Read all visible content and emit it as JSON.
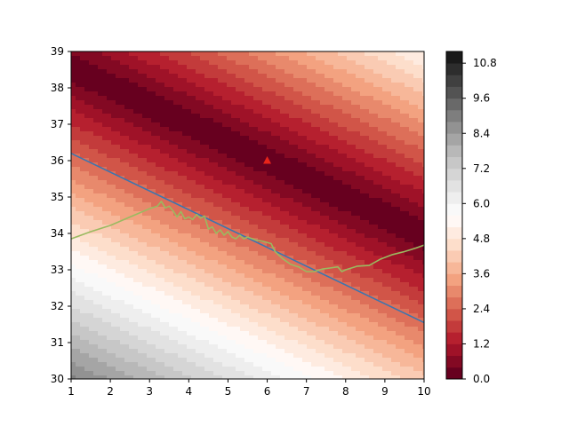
{
  "chart_data": {
    "type": "contour",
    "xlim": [
      1,
      10
    ],
    "ylim": [
      30,
      39
    ],
    "x_ticks": [
      "1",
      "2",
      "3",
      "4",
      "5",
      "6",
      "7",
      "8",
      "9",
      "10"
    ],
    "y_ticks": [
      "30",
      "31",
      "32",
      "33",
      "34",
      "35",
      "36",
      "37",
      "38",
      "39"
    ],
    "contour_levels": [
      0.0,
      0.4,
      0.8,
      1.2,
      1.6,
      2.0,
      2.4,
      2.8,
      3.2,
      3.6,
      4.0,
      4.4,
      4.8,
      5.2,
      5.6,
      6.0,
      6.4,
      6.8,
      7.2,
      7.6,
      8.0,
      8.4,
      8.8,
      9.2,
      9.6,
      10.0,
      10.4,
      10.8,
      11.2
    ],
    "colorbar_ticks": [
      "0.0",
      "1.2",
      "2.4",
      "3.6",
      "4.8",
      "6.0",
      "7.2",
      "8.4",
      "9.6",
      "10.8"
    ],
    "colormap": "RdGy",
    "field": {
      "min_point": [
        6,
        36
      ],
      "gradient_per_x": 0.53,
      "gradient_per_y": 1.04
    },
    "regression_line": {
      "color": "#3b75af",
      "x": [
        1,
        10
      ],
      "y": [
        36.2,
        31.55
      ]
    },
    "trajectory": {
      "color": "#9aba60",
      "x": [
        1.0,
        1.5,
        2.0,
        2.5,
        3.0,
        3.2,
        3.3,
        3.4,
        3.5,
        3.6,
        3.7,
        3.8,
        3.9,
        4.0,
        4.1,
        4.2,
        4.3,
        4.4,
        4.5,
        4.6,
        4.7,
        4.8,
        4.9,
        5.0,
        5.1,
        5.2,
        5.3,
        5.4,
        5.5,
        5.7,
        5.9,
        6.1,
        6.2,
        6.4,
        6.6,
        6.8,
        7.0,
        7.2,
        7.4,
        7.6,
        7.8,
        7.9,
        8.0,
        8.3,
        8.6,
        8.9,
        9.2,
        9.5,
        9.8,
        10.0
      ],
      "y": [
        33.85,
        34.05,
        34.22,
        34.45,
        34.68,
        34.75,
        34.88,
        34.7,
        34.75,
        34.62,
        34.45,
        34.6,
        34.4,
        34.45,
        34.38,
        34.52,
        34.42,
        34.48,
        34.12,
        34.18,
        34.0,
        34.1,
        33.95,
        34.05,
        33.9,
        33.85,
        33.95,
        33.85,
        33.9,
        33.82,
        33.78,
        33.72,
        33.5,
        33.3,
        33.15,
        33.08,
        32.95,
        32.95,
        33.02,
        33.05,
        33.08,
        32.95,
        33.0,
        33.1,
        33.12,
        33.3,
        33.42,
        33.5,
        33.6,
        33.68
      ]
    },
    "marker": {
      "x": 6,
      "y": 36,
      "shape": "triangle",
      "color": "#e8241a"
    }
  }
}
